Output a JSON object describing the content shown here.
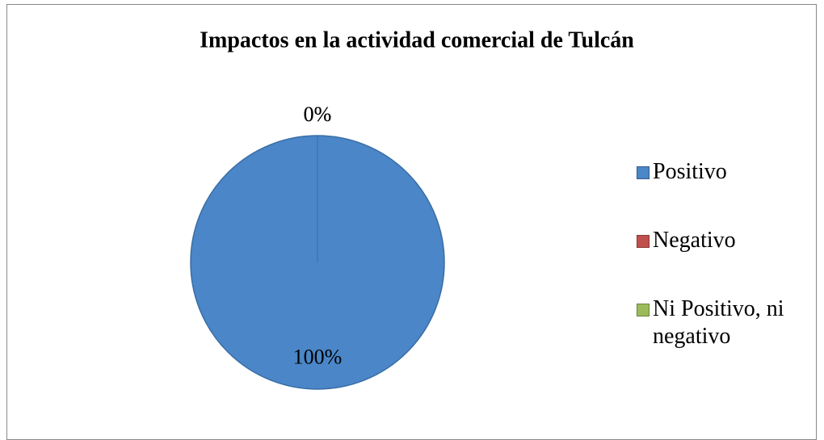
{
  "chart_data": {
    "type": "pie",
    "title": "Impactos en la actividad comercial de Tulcán",
    "categories": [
      "Positivo",
      "Negativo",
      "Ni Positivo, ni negativo"
    ],
    "values": [
      100,
      0,
      0
    ],
    "value_labels": [
      "100%",
      "0%",
      "0%"
    ],
    "colors": [
      "#4a86c8",
      "#c0504d",
      "#9bbb59"
    ],
    "legend": "right"
  }
}
